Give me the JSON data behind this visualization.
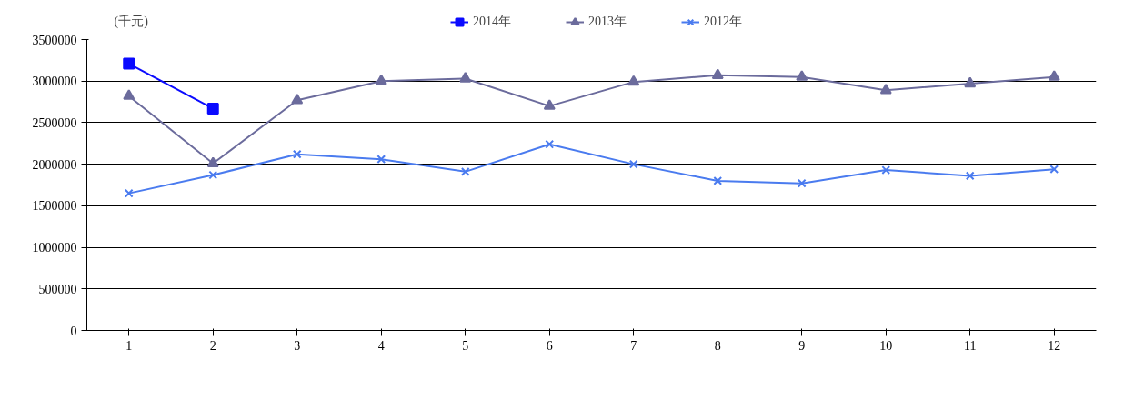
{
  "chart_data": {
    "type": "line",
    "ylabel": "(千元)",
    "categories": [
      "1",
      "2",
      "3",
      "4",
      "5",
      "6",
      "7",
      "8",
      "9",
      "10",
      "11",
      "12"
    ],
    "ylim": [
      0,
      3500000
    ],
    "yticks": [
      0,
      500000,
      1000000,
      1500000,
      2000000,
      2500000,
      3000000,
      3500000
    ],
    "grid": "y",
    "legend": "top",
    "line_style": "solid",
    "series": [
      {
        "name": "2014年",
        "color": "#0a0aff",
        "marker": "square",
        "values": [
          3210000,
          2670000,
          null,
          null,
          null,
          null,
          null,
          null,
          null,
          null,
          null,
          null
        ]
      },
      {
        "name": "2013年",
        "color": "#6b6b9c",
        "marker": "triangle",
        "values": [
          2820000,
          2010000,
          2770000,
          3000000,
          3030000,
          2700000,
          2990000,
          3070000,
          3050000,
          2890000,
          2970000,
          3050000
        ]
      },
      {
        "name": "2012年",
        "color": "#4a7bef",
        "marker": "cross",
        "values": [
          1650000,
          1870000,
          2120000,
          2060000,
          1910000,
          2240000,
          2000000,
          1800000,
          1770000,
          1930000,
          1860000,
          1940000
        ]
      }
    ]
  }
}
